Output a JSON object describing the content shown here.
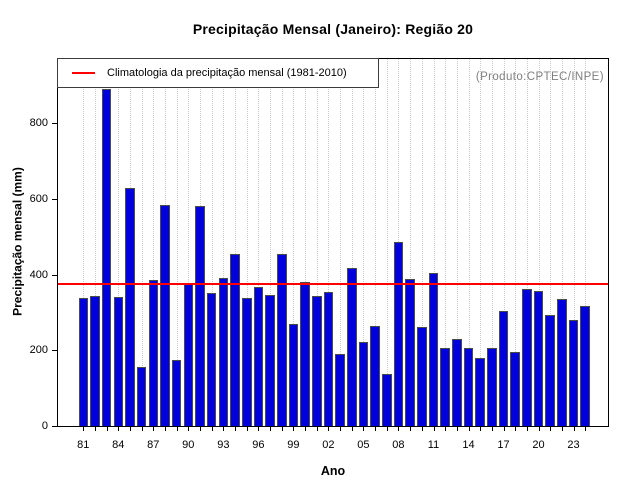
{
  "watermark": "(Produto:CPTEC/INPE)",
  "colors": {
    "bar_fill": "#0000DD",
    "bar_border": "#4a4a4a",
    "climatology_line": "#FF0000",
    "grid": "#CCCCCC",
    "watermark_text": "#7F7F7F",
    "axis": "#000000"
  },
  "chart_data": {
    "type": "bar",
    "title": "Precipitação Mensal (Janeiro): Região 20",
    "xlabel": "Ano",
    "ylabel": "Precipitação mensal (mm)",
    "ylim": [
      0,
      970
    ],
    "y_ticks": [
      0,
      200,
      400,
      600,
      800
    ],
    "x_label_every": 3,
    "grid": "vertical-dotted",
    "categories": [
      "81",
      "82",
      "83",
      "84",
      "85",
      "86",
      "87",
      "88",
      "89",
      "90",
      "91",
      "92",
      "93",
      "94",
      "95",
      "96",
      "97",
      "98",
      "99",
      "00",
      "01",
      "02",
      "03",
      "04",
      "05",
      "06",
      "07",
      "08",
      "09",
      "10",
      "11",
      "12",
      "13",
      "14",
      "15",
      "16",
      "17",
      "18",
      "19",
      "20",
      "21",
      "22",
      "23",
      "24"
    ],
    "values": [
      337,
      343,
      890,
      341,
      630,
      157,
      387,
      585,
      174,
      374,
      581,
      352,
      390,
      455,
      337,
      368,
      346,
      455,
      270,
      381,
      343,
      355,
      189,
      418,
      223,
      264,
      137,
      485,
      388,
      262,
      405,
      207,
      229,
      205,
      179,
      207,
      304,
      196,
      361,
      357,
      294,
      336,
      280,
      318
    ],
    "legend": {
      "label": "Climatologia da precipitação mensal (1981-2010)",
      "position": "top-left"
    },
    "climatology_line": {
      "value": 375,
      "color": "#FF0000"
    }
  }
}
